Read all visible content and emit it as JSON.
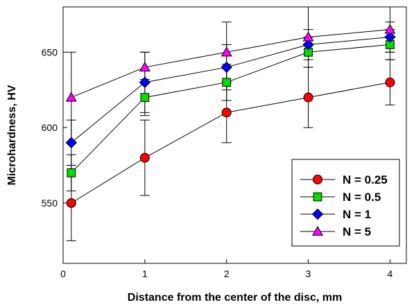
{
  "chart_data": {
    "type": "scatter",
    "xlabel": "Distance from the center of the disc, mm",
    "ylabel": "Microhardness, HV",
    "xlim": [
      0,
      4.2
    ],
    "ylim": [
      510,
      680
    ],
    "x_ticks": [
      0,
      1,
      2,
      3,
      4
    ],
    "y_ticks": [
      550,
      600,
      650
    ],
    "grid": false,
    "legend_position": "bottom-right",
    "x": [
      0.1,
      1,
      2,
      3,
      4
    ],
    "series": [
      {
        "name": "N = 0.25",
        "marker": "circle",
        "color": "#ff0000",
        "values": [
          550,
          580,
          610,
          620,
          630
        ],
        "error": [
          25,
          25,
          20,
          20,
          15
        ]
      },
      {
        "name": "N = 0.5",
        "marker": "square",
        "color": "#00dd00",
        "values": [
          570,
          620,
          630,
          650,
          655
        ],
        "error": [
          12,
          12,
          12,
          10,
          10
        ]
      },
      {
        "name": "N = 1",
        "marker": "diamond",
        "color": "#0000ff",
        "values": [
          590,
          630,
          640,
          655,
          660
        ],
        "error": [
          15,
          20,
          15,
          10,
          10
        ]
      },
      {
        "name": "N = 5",
        "marker": "triangle",
        "color": "#ff00ff",
        "values": [
          620,
          640,
          650,
          660,
          665
        ],
        "error": [
          30,
          10,
          20,
          20,
          15
        ]
      }
    ]
  }
}
